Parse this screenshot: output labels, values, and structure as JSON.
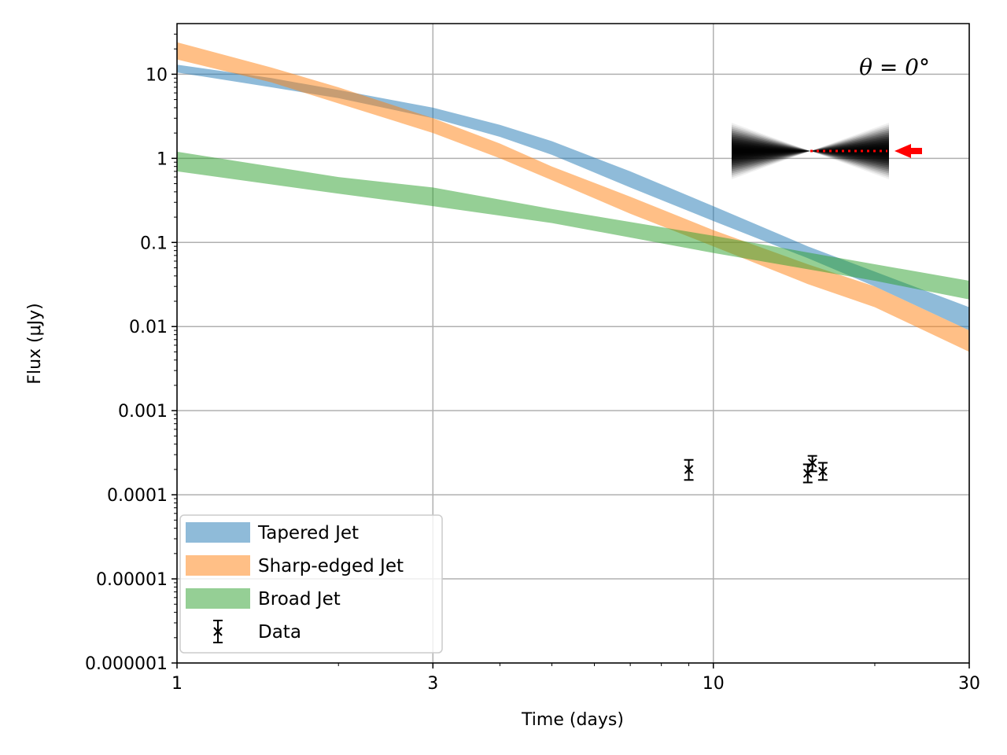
{
  "chart_data": {
    "type": "area",
    "xlabel": "Time (days)",
    "ylabel": "Flux (μJy)",
    "x_scale": "log",
    "y_scale": "log",
    "xlim": [
      1,
      30
    ],
    "ylim": [
      1e-06,
      40
    ],
    "grid": true,
    "legend_position": "lower-left",
    "x_ticks": [
      {
        "value": 1,
        "label": "1"
      },
      {
        "value": 3,
        "label": "3"
      },
      {
        "value": 10,
        "label": "10"
      },
      {
        "value": 30,
        "label": "30"
      }
    ],
    "y_ticks": [
      {
        "value": 1e-06,
        "label": "0.000001"
      },
      {
        "value": 1e-05,
        "label": "0.00001"
      },
      {
        "value": 0.0001,
        "label": "0.0001"
      },
      {
        "value": 0.001,
        "label": "0.001"
      },
      {
        "value": 0.01,
        "label": "0.01"
      },
      {
        "value": 0.1,
        "label": "0.1"
      },
      {
        "value": 1,
        "label": "1"
      },
      {
        "value": 10,
        "label": "10"
      }
    ],
    "annotation": "θ = 0°",
    "series": [
      {
        "name": "Tapered Jet",
        "color": "#1f77b4",
        "x": [
          1,
          1.5,
          2,
          3,
          4,
          5,
          7,
          10,
          15,
          20,
          30
        ],
        "y_upper": [
          13,
          9,
          6.5,
          4,
          2.5,
          1.6,
          0.7,
          0.27,
          0.09,
          0.045,
          0.017
        ],
        "y_lower": [
          10.5,
          7,
          5.2,
          3,
          1.8,
          1.1,
          0.45,
          0.18,
          0.065,
          0.03,
          0.009
        ]
      },
      {
        "name": "Sharp-edged Jet",
        "color": "#ff7f0e",
        "x": [
          1,
          1.5,
          2,
          3,
          4,
          5,
          7,
          10,
          15,
          20,
          30
        ],
        "y_upper": [
          24,
          12,
          7,
          3,
          1.5,
          0.8,
          0.35,
          0.14,
          0.055,
          0.03,
          0.009
        ],
        "y_lower": [
          15,
          8,
          4.5,
          2,
          1,
          0.55,
          0.22,
          0.09,
          0.032,
          0.017,
          0.005
        ]
      },
      {
        "name": "Broad Jet",
        "color": "#2ca02c",
        "x": [
          1,
          2,
          3,
          5,
          10,
          20,
          30
        ],
        "y_upper": [
          1.2,
          0.6,
          0.45,
          0.25,
          0.12,
          0.055,
          0.035
        ],
        "y_lower": [
          0.7,
          0.38,
          0.27,
          0.17,
          0.075,
          0.035,
          0.021
        ]
      }
    ],
    "data_points": {
      "name": "Data",
      "marker": "x",
      "color": "#000000",
      "points": [
        {
          "x": 9.0,
          "y": 0.0002,
          "y_err_low": 5e-05,
          "y_err_high": 6e-05
        },
        {
          "x": 15.0,
          "y": 0.00018,
          "y_err_low": 4e-05,
          "y_err_high": 5e-05
        },
        {
          "x": 15.3,
          "y": 0.00024,
          "y_err_low": 5e-05,
          "y_err_high": 5e-05
        },
        {
          "x": 16.0,
          "y": 0.00019,
          "y_err_low": 4e-05,
          "y_err_high": 5e-05
        }
      ]
    }
  }
}
